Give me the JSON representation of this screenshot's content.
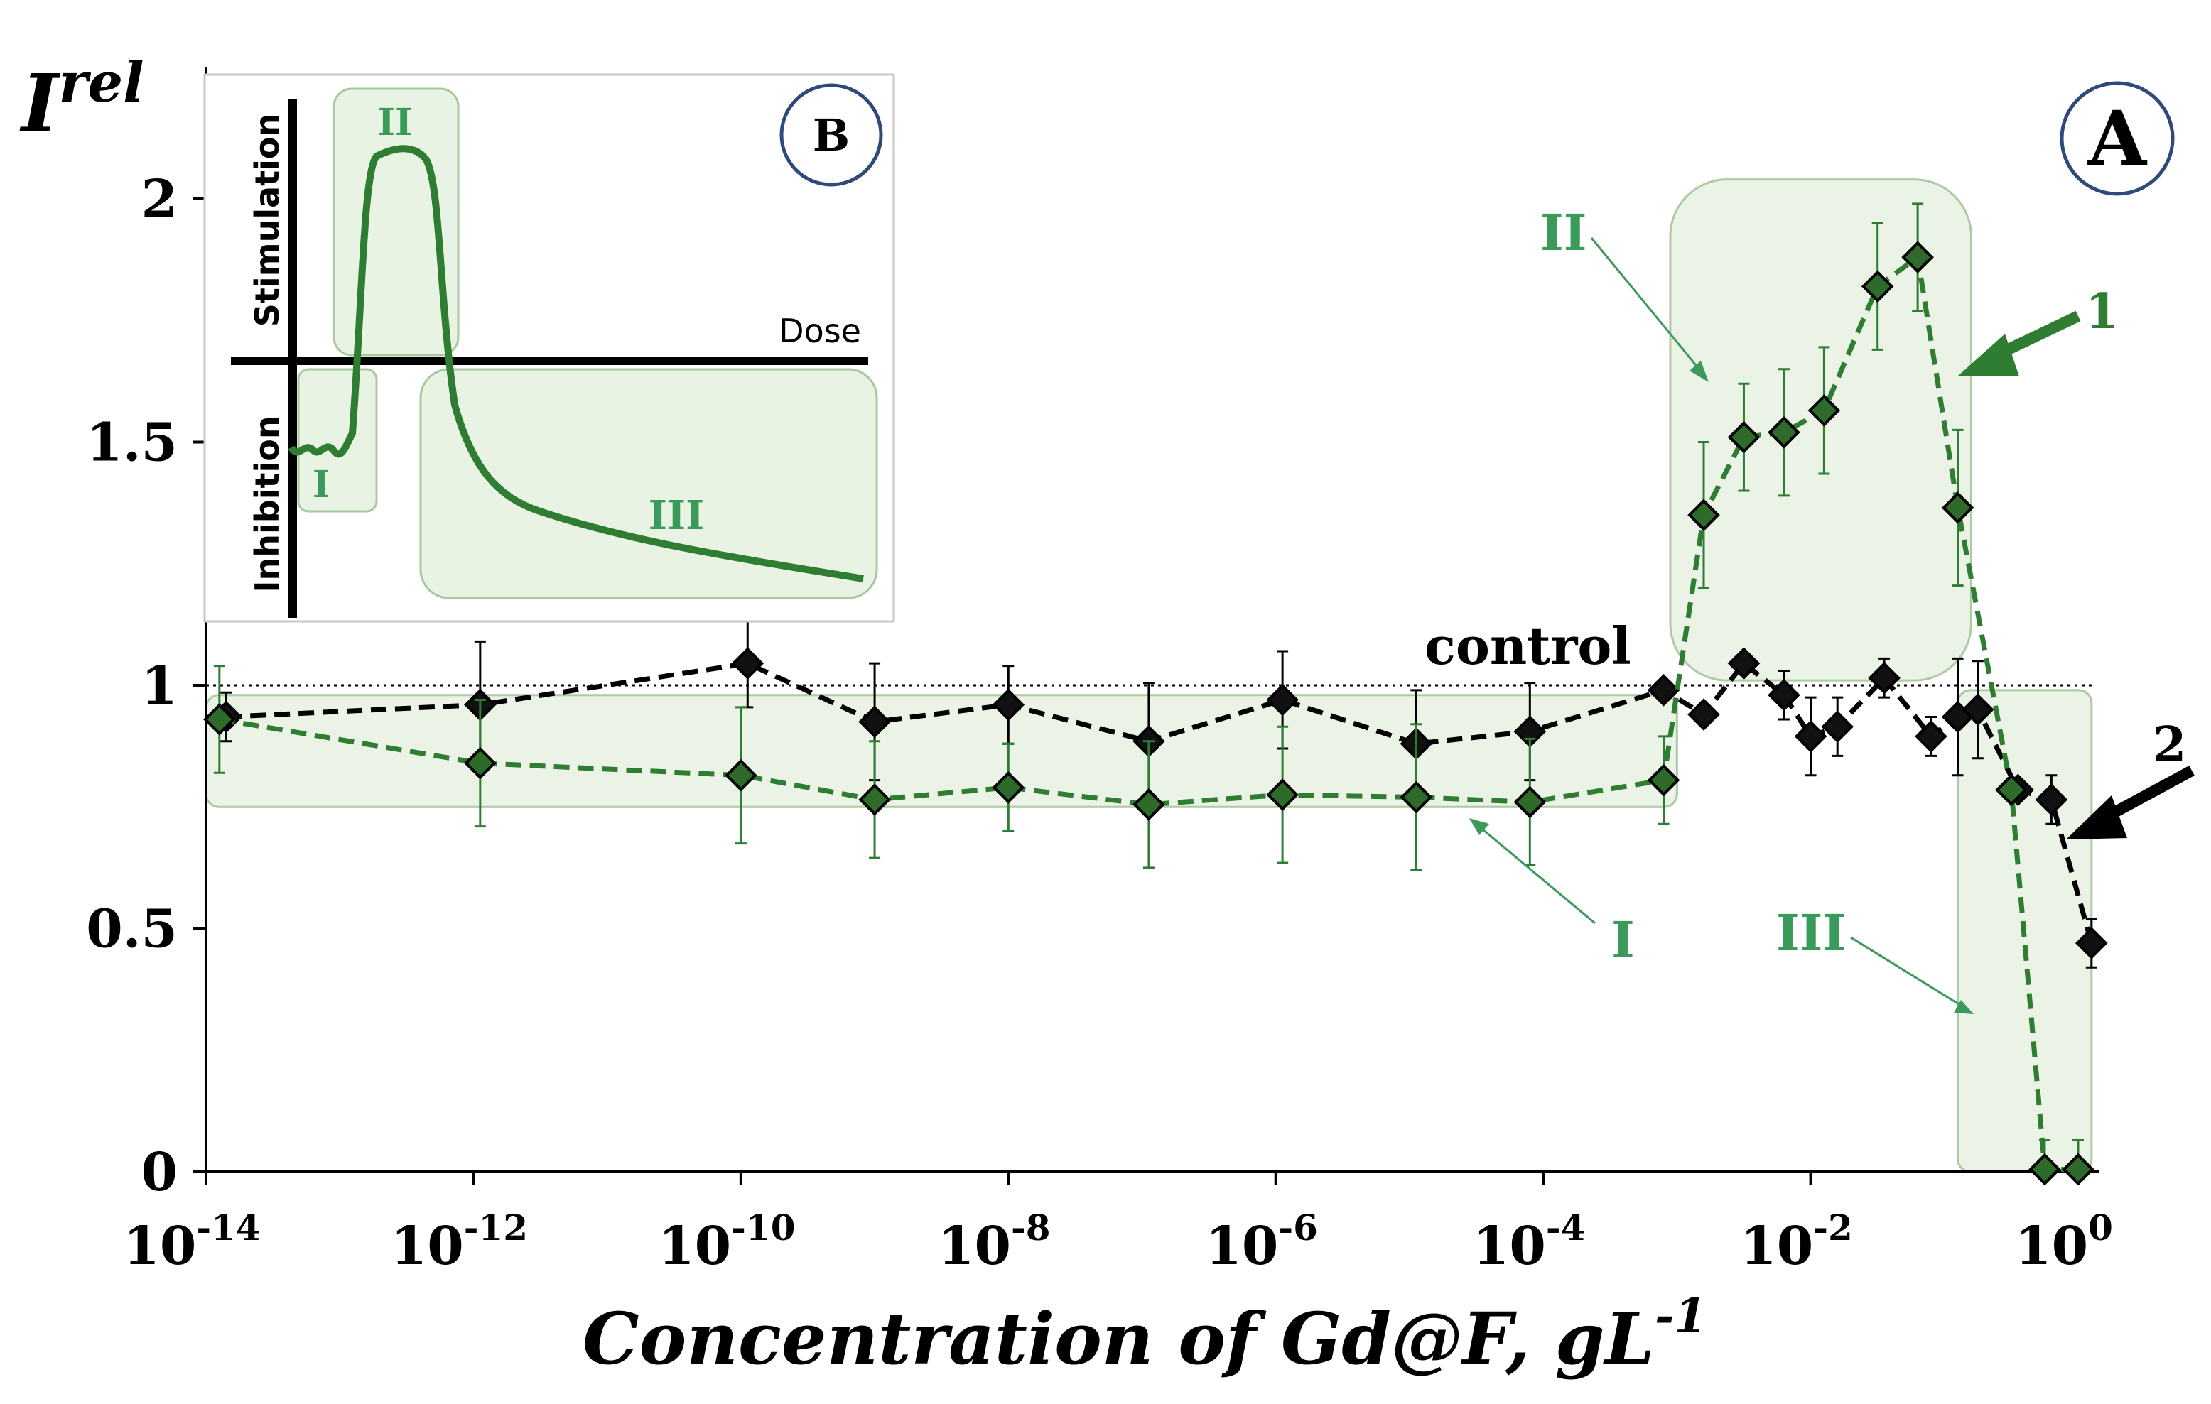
{
  "chart_data": {
    "type": "line",
    "panel_label": "A",
    "ylabel_main": "I",
    "ylabel_sup": "rel",
    "xlabel_main": "Concentration of Gd@F, gL",
    "xlabel_sup": "-1",
    "ylim": [
      0,
      2.2
    ],
    "yticks": [
      "0",
      "0.5",
      "1",
      "1.5",
      "2"
    ],
    "xlim_log10": [
      -14,
      0.1
    ],
    "xticks": [
      {
        "base": "10",
        "exp": "-14"
      },
      {
        "base": "10",
        "exp": "-12"
      },
      {
        "base": "10",
        "exp": "-10"
      },
      {
        "base": "10",
        "exp": "-8"
      },
      {
        "base": "10",
        "exp": "-6"
      },
      {
        "base": "10",
        "exp": "-4"
      },
      {
        "base": "10",
        "exp": "-2"
      },
      {
        "base": "10",
        "exp": "0"
      }
    ],
    "control": {
      "label": "control",
      "value": 1.0
    },
    "series": [
      {
        "name": "1",
        "color": "#2e7d32",
        "marker_fill": "#2e6b2a",
        "points": [
          {
            "x": -13.9,
            "y": 0.93,
            "err": 0.11
          },
          {
            "x": -11.95,
            "y": 0.84,
            "err": 0.13
          },
          {
            "x": -10.0,
            "y": 0.815,
            "err": 0.14
          },
          {
            "x": -9.0,
            "y": 0.765,
            "err": 0.12
          },
          {
            "x": -8.0,
            "y": 0.79,
            "err": 0.09
          },
          {
            "x": -6.95,
            "y": 0.755,
            "err": 0.13
          },
          {
            "x": -5.95,
            "y": 0.775,
            "err": 0.14
          },
          {
            "x": -4.95,
            "y": 0.77,
            "err": 0.15
          },
          {
            "x": -4.1,
            "y": 0.76,
            "err": 0.13
          },
          {
            "x": -3.1,
            "y": 0.805,
            "err": 0.09
          },
          {
            "x": -2.8,
            "y": 1.35,
            "err": 0.15
          },
          {
            "x": -2.5,
            "y": 1.51,
            "err": 0.11
          },
          {
            "x": -2.2,
            "y": 1.52,
            "err": 0.13
          },
          {
            "x": -1.9,
            "y": 1.565,
            "err": 0.13
          },
          {
            "x": -1.5,
            "y": 1.82,
            "err": 0.13
          },
          {
            "x": -1.2,
            "y": 1.88,
            "err": 0.11
          },
          {
            "x": -0.9,
            "y": 1.365,
            "err": 0.16
          },
          {
            "x": -0.5,
            "y": 0.785,
            "err": 0.0
          },
          {
            "x": -0.25,
            "y": 0.005,
            "err": 0.06
          },
          {
            "x": 0.0,
            "y": 0.005,
            "err": 0.06
          }
        ]
      },
      {
        "name": "2",
        "color": "#000000",
        "marker_fill": "#111111",
        "points": [
          {
            "x": -13.85,
            "y": 0.935,
            "err": 0.05
          },
          {
            "x": -11.95,
            "y": 0.96,
            "err": 0.13
          },
          {
            "x": -9.95,
            "y": 1.045,
            "err": 0.09
          },
          {
            "x": -9.0,
            "y": 0.925,
            "err": 0.12
          },
          {
            "x": -8.0,
            "y": 0.96,
            "err": 0.08
          },
          {
            "x": -6.95,
            "y": 0.885,
            "err": 0.12
          },
          {
            "x": -5.95,
            "y": 0.97,
            "err": 0.1
          },
          {
            "x": -4.95,
            "y": 0.88,
            "err": 0.11
          },
          {
            "x": -4.1,
            "y": 0.905,
            "err": 0.1
          },
          {
            "x": -3.1,
            "y": 0.99,
            "err": 0.0
          },
          {
            "x": -2.8,
            "y": 0.94,
            "err": 0.0
          },
          {
            "x": -2.5,
            "y": 1.045,
            "err": 0.0
          },
          {
            "x": -2.2,
            "y": 0.98,
            "err": 0.05
          },
          {
            "x": -2.0,
            "y": 0.895,
            "err": 0.08
          },
          {
            "x": -1.8,
            "y": 0.915,
            "err": 0.06
          },
          {
            "x": -1.45,
            "y": 1.015,
            "err": 0.04
          },
          {
            "x": -1.1,
            "y": 0.895,
            "err": 0.04
          },
          {
            "x": -0.9,
            "y": 0.935,
            "err": 0.12
          },
          {
            "x": -0.75,
            "y": 0.95,
            "err": 0.1
          },
          {
            "x": -0.45,
            "y": 0.785,
            "err": 0.0
          },
          {
            "x": -0.2,
            "y": 0.765,
            "err": 0.05
          },
          {
            "x": 0.1,
            "y": 0.47,
            "err": 0.05
          }
        ]
      }
    ],
    "regions": [
      {
        "label": "I",
        "x_from": -14.0,
        "x_to": -3.0,
        "y_from": 0.75,
        "y_to": 0.98
      },
      {
        "label": "II",
        "x_from": -3.05,
        "x_to": -0.8,
        "y_from": 1.01,
        "y_to": 2.04
      },
      {
        "label": "III",
        "x_from": -0.9,
        "x_to": 0.1,
        "y_from": 0.0,
        "y_to": 0.99
      }
    ],
    "annotations": [
      "I",
      "II",
      "III",
      "1",
      "2"
    ],
    "inset": {
      "panel_label": "B",
      "title": "",
      "x_label": "Dose",
      "y_label_top": "Stimulation",
      "y_label_bottom": "Inhibition",
      "region_labels": [
        "I",
        "II",
        "III"
      ]
    }
  },
  "colors": {
    "green": "#2e7d32",
    "green_text": "#3a9a5a",
    "region_fill": "#e9f3e4",
    "region_stroke": "#a9c8a0",
    "panel_circle": "#2f4a7a"
  }
}
